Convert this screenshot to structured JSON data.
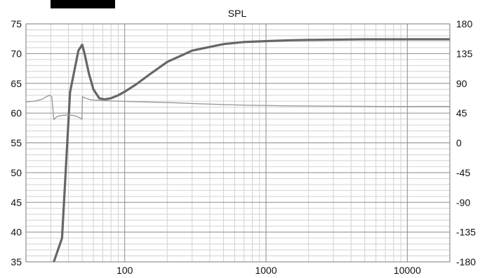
{
  "chart_data": {
    "type": "line",
    "title": "SPL",
    "xscale": "log",
    "xlim": [
      20,
      20000
    ],
    "ylim_left": [
      35,
      75
    ],
    "ylim_right": [
      -180,
      180
    ],
    "x_ticks": [
      "100",
      "1000",
      "10000"
    ],
    "y_ticks_left": [
      "75",
      "70",
      "65",
      "60",
      "55",
      "50",
      "45",
      "40",
      "35"
    ],
    "y_ticks_right": [
      "180",
      "135",
      "90",
      "45",
      "0",
      "-45",
      "-90",
      "-135",
      "-180"
    ],
    "grid": true,
    "legend": "none",
    "series": [
      {
        "axis": "left",
        "color": "#666666",
        "style": "thick",
        "x": [
          20,
          31.5,
          36,
          41,
          47,
          50,
          52,
          56,
          60,
          66,
          72,
          80,
          90,
          100,
          120,
          150,
          200,
          300,
          500,
          700,
          1000,
          1500,
          2000,
          3000,
          5000,
          10000,
          20000
        ],
        "y": [
          null,
          35,
          39,
          63.5,
          70.5,
          71.5,
          70,
          66.5,
          64,
          62.5,
          62.3,
          62.5,
          63,
          63.6,
          64.8,
          66.5,
          68.6,
          70.5,
          71.6,
          71.95,
          72.1,
          72.25,
          72.3,
          72.35,
          72.4,
          72.4,
          72.4
        ]
      },
      {
        "axis": "right",
        "color": "#999999",
        "style": "thin",
        "x": [
          20,
          23,
          26,
          28,
          29.5,
          30.5,
          31.5,
          33,
          35,
          38,
          42,
          45,
          48,
          49.8,
          50.2,
          52,
          58,
          70,
          90,
          130,
          200,
          350,
          700,
          1500,
          3000,
          7000,
          20000
        ],
        "y": [
          62,
          63,
          66,
          70,
          72,
          69,
          35,
          39.5,
          41.2,
          41.8,
          41.6,
          40.8,
          38,
          35.5,
          70,
          68,
          65,
          64,
          63,
          62,
          61,
          59,
          57,
          56,
          55.5,
          55,
          55
        ]
      }
    ]
  }
}
